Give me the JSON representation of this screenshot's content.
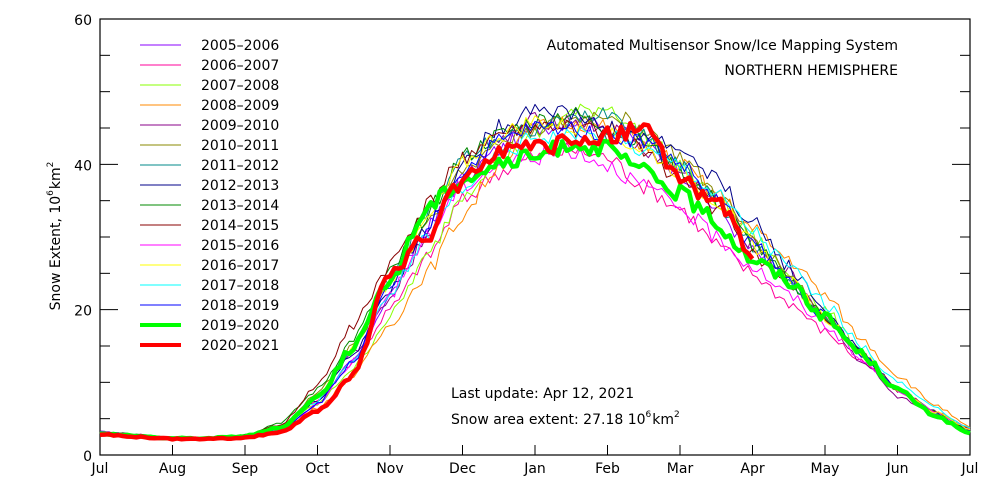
{
  "chart_data": {
    "type": "line",
    "title": "Automated  Multisensor Snow/Ice Mapping System",
    "subtitle": "NORTHERN HEMISPHERE",
    "xlabel": "",
    "ylabel": "Snow Extent, 10⁶km²",
    "ylabel_main": "Snow Extent, 10",
    "ylabel_exp": "6",
    "ylabel_unit": "km",
    "ylabel_unit_exp": "2",
    "ylim": [
      0,
      60
    ],
    "yticks_major": [
      0,
      20,
      40,
      60
    ],
    "yticks_minor_step": 5,
    "xlim": [
      0,
      12
    ],
    "x_unit": "months since Jul 1",
    "x_tick_labels": [
      "Jul",
      "Aug",
      "Sep",
      "Oct",
      "Nov",
      "Dec",
      "Jan",
      "Feb",
      "Mar",
      "Apr",
      "May",
      "Jun",
      "Jul"
    ],
    "grid": false,
    "legend_position": "top-left",
    "annotations": {
      "last_update": "Last update: Apr 12, 2021",
      "extent_prefix": "Snow area extent: 27.18 10",
      "extent_exp": "6",
      "extent_unit": "km",
      "extent_unit_exp": "2"
    },
    "x": [
      0,
      0.5,
      1,
      1.5,
      2,
      2.5,
      3,
      3.5,
      4,
      4.5,
      5,
      5.5,
      6,
      6.5,
      7,
      7.5,
      8,
      8.5,
      9,
      9.5,
      10,
      10.5,
      11,
      11.5,
      12
    ],
    "series": [
      {
        "name": "2005–2006",
        "color": "#8800ff",
        "bold": false,
        "values": [
          3.2,
          2.8,
          2.4,
          2.3,
          2.5,
          3.5,
          7,
          13,
          22,
          31,
          38,
          42,
          45,
          46,
          45,
          43,
          39,
          34,
          28,
          24,
          19,
          14,
          9,
          6,
          3.5
        ]
      },
      {
        "name": "2006–2007",
        "color": "#ff0099",
        "bold": false,
        "values": [
          3.0,
          2.7,
          2.3,
          2.3,
          2.6,
          3.8,
          7.5,
          13,
          20,
          27,
          35,
          39,
          41,
          42,
          41,
          37,
          34,
          29,
          25,
          21,
          17,
          13,
          9,
          6,
          3.8
        ]
      },
      {
        "name": "2007–2008",
        "color": "#88ff00",
        "bold": false,
        "values": [
          3.1,
          2.7,
          2.4,
          2.4,
          2.6,
          3.6,
          7,
          12,
          19,
          27,
          36,
          41,
          44,
          47,
          48,
          44,
          40,
          35,
          30,
          25,
          20,
          14,
          9,
          6,
          3.5
        ]
      },
      {
        "name": "2008–2009",
        "color": "#ff8800",
        "bold": false,
        "values": [
          3.1,
          2.8,
          2.4,
          2.3,
          2.6,
          3.4,
          6.5,
          11,
          18,
          25,
          33,
          40,
          45,
          46,
          45,
          43,
          40,
          36,
          31,
          27,
          22,
          16,
          11,
          7,
          3.8
        ]
      },
      {
        "name": "2009–2010",
        "color": "#880088",
        "bold": false,
        "values": [
          3.2,
          2.8,
          2.4,
          2.3,
          2.5,
          3.7,
          8,
          14,
          22,
          30,
          38,
          43,
          46,
          46,
          45,
          42,
          39,
          35,
          29,
          25,
          19,
          13,
          8,
          5.5,
          3.4
        ]
      },
      {
        "name": "2010–2011",
        "color": "#888800",
        "bold": false,
        "values": [
          3.0,
          2.7,
          2.4,
          2.4,
          2.7,
          4.0,
          8.5,
          15,
          24,
          32,
          39,
          43,
          45,
          46,
          47,
          45,
          41,
          36,
          30,
          25,
          19,
          14,
          9,
          6,
          3.6
        ]
      },
      {
        "name": "2011–2012",
        "color": "#008888",
        "bold": false,
        "values": [
          3.1,
          2.7,
          2.4,
          2.3,
          2.6,
          3.8,
          8,
          15,
          24,
          33,
          41,
          44,
          45,
          46,
          47,
          44,
          40,
          35,
          29,
          24,
          19,
          14,
          9,
          6,
          3.4
        ]
      },
      {
        "name": "2012–2013",
        "color": "#000088",
        "bold": false,
        "values": [
          3.0,
          2.7,
          2.3,
          2.3,
          2.5,
          3.6,
          7.5,
          14,
          23,
          31,
          40,
          45,
          48,
          47,
          45,
          44,
          42,
          38,
          32,
          26,
          20,
          14,
          9,
          5.5,
          3.3
        ]
      },
      {
        "name": "2013–2014",
        "color": "#008800",
        "bold": false,
        "values": [
          3.2,
          2.8,
          2.4,
          2.4,
          2.8,
          4.5,
          9,
          16,
          25,
          33,
          41,
          44,
          46,
          47,
          45,
          43,
          39,
          35,
          29,
          24,
          19,
          14,
          9,
          6,
          3.5
        ]
      },
      {
        "name": "2014–2015",
        "color": "#880000",
        "bold": false,
        "values": [
          3.1,
          2.7,
          2.3,
          2.3,
          2.7,
          4.2,
          9.5,
          18,
          26,
          34,
          41,
          44,
          45,
          45,
          44,
          42,
          38,
          34,
          28,
          23,
          19,
          14,
          9,
          6,
          3.5
        ]
      },
      {
        "name": "2015–2016",
        "color": "#ff00ff",
        "bold": false,
        "values": [
          3.0,
          2.6,
          2.3,
          2.3,
          2.5,
          3.5,
          7,
          13,
          22,
          30,
          37,
          40,
          41,
          42,
          40,
          37,
          34,
          30,
          26,
          22,
          18,
          13,
          9,
          6,
          3.6
        ]
      },
      {
        "name": "2016–2017",
        "color": "#ffff00",
        "bold": false,
        "values": [
          3.1,
          2.7,
          2.4,
          2.3,
          2.6,
          3.8,
          8,
          15,
          24,
          32,
          40,
          44,
          46,
          45,
          44,
          42,
          39,
          35,
          29,
          24,
          19,
          14,
          9,
          6,
          3.5
        ]
      },
      {
        "name": "2017–2018",
        "color": "#00ffff",
        "bold": false,
        "values": [
          3.1,
          2.7,
          2.4,
          2.3,
          2.6,
          3.7,
          7.5,
          13,
          22,
          30,
          37,
          41,
          44,
          44,
          44,
          42,
          40,
          36,
          31,
          26,
          21,
          15,
          10,
          6.5,
          3.7
        ]
      },
      {
        "name": "2018–2019",
        "color": "#0000ff",
        "bold": false,
        "values": [
          3.0,
          2.7,
          2.3,
          2.3,
          2.5,
          3.6,
          7,
          13,
          23,
          31,
          39,
          43,
          45,
          45,
          44,
          43,
          40,
          35,
          29,
          24,
          19,
          14,
          9,
          5.5,
          3.3
        ]
      },
      {
        "name": "2019–2020",
        "color": "#00ff00",
        "bold": true,
        "values": [
          2.9,
          2.6,
          2.3,
          2.3,
          2.6,
          3.8,
          8,
          15,
          24,
          34,
          38,
          40,
          41,
          43,
          42,
          39,
          36,
          32,
          27,
          24,
          19,
          14,
          9,
          5.5,
          3.0
        ]
      },
      {
        "name": "2020–2021",
        "color": "#ff0000",
        "bold": true,
        "values": [
          2.8,
          2.5,
          2.2,
          2.2,
          2.4,
          3.2,
          6,
          11,
          25,
          30,
          38,
          42,
          42,
          43,
          44,
          45,
          38,
          35,
          27,
          null,
          null,
          null,
          null,
          null,
          null
        ]
      }
    ]
  }
}
